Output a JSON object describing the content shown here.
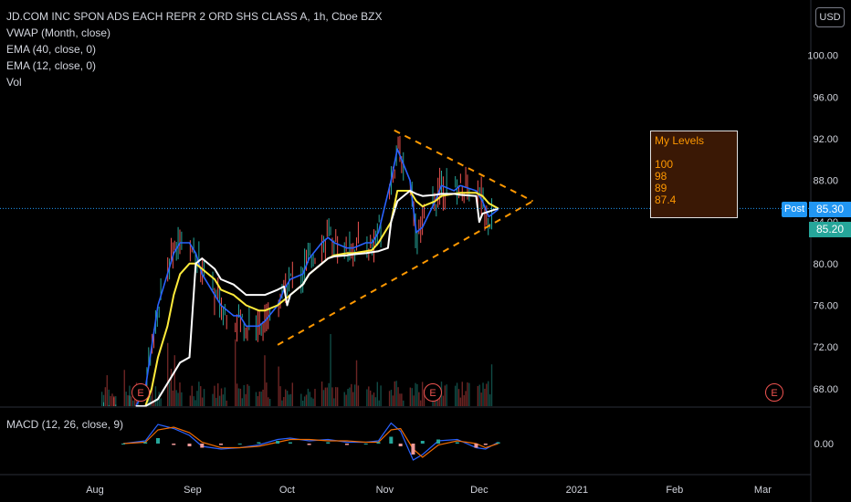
{
  "legend": {
    "title": "JD.COM INC SPON ADS EACH REPR 2 ORD SHS CLASS A, 1h, Cboe BZX",
    "vwap": "VWAP (Month, close)",
    "ema40": "EMA (40, close, 0)",
    "ema12": "EMA (12, close, 0)",
    "vol": "Vol"
  },
  "macd_label": "MACD (12, 26, close, 9)",
  "currency": "USD",
  "levels_box": {
    "title": "My Levels",
    "values": [
      "100",
      "98",
      "89",
      "87.4"
    ]
  },
  "price_tags": {
    "post_label": "Post",
    "post_price": "85.30",
    "last_price": "85.20"
  },
  "earnings_marker": "E",
  "colors": {
    "background": "#000000",
    "ema12": "#2962ff",
    "ema40": "#ffeb3b",
    "vwap": "#ffffff",
    "trendline": "#ff9800",
    "candle_up": "#26a69a",
    "candle_down": "#ef5350",
    "level_box_text": "#ff9800"
  },
  "chart_data": [
    {
      "type": "line",
      "title": "JD.COM INC SPON ADS EACH REPR 2 ORD SHS CLASS A, 1h, Cboe BZX",
      "x_tick_labels": [
        "Aug",
        "Sep",
        "Oct",
        "Nov",
        "Dec",
        "2021",
        "Feb",
        "Mar"
      ],
      "y_tick_labels": [
        "100.00",
        "96.00",
        "92.00",
        "88.00",
        "84.00",
        "80.00",
        "76.00",
        "72.00",
        "68.00"
      ],
      "ylim": [
        65,
        104
      ],
      "series": [
        {
          "name": "EMA (12, close, 0)",
          "x": [
            "Aug 14",
            "Aug 17",
            "Aug 19",
            "Aug 21",
            "Aug 24",
            "Aug 26",
            "Aug 28",
            "Aug 31",
            "Sep 2",
            "Sep 4",
            "Sep 8",
            "Sep 10",
            "Sep 14",
            "Sep 16",
            "Sep 18",
            "Sep 22",
            "Sep 24",
            "Sep 28",
            "Sep 30",
            "Oct 2",
            "Oct 6",
            "Oct 8",
            "Oct 12",
            "Oct 14",
            "Oct 16",
            "Oct 20",
            "Oct 22",
            "Oct 26",
            "Oct 28",
            "Oct 30",
            "Nov 3",
            "Nov 5",
            "Nov 9",
            "Nov 11",
            "Nov 13",
            "Nov 17",
            "Nov 19",
            "Nov 23",
            "Nov 25",
            "Nov 30",
            "Dec 2",
            "Dec 4",
            "Dec 7"
          ],
          "values": [
            65,
            68,
            72,
            76,
            79,
            81,
            82,
            82,
            81,
            79,
            77,
            76,
            75,
            75,
            74,
            74,
            74.5,
            76,
            77.5,
            78.5,
            79,
            80.5,
            82,
            82.5,
            82,
            81.5,
            81.5,
            82,
            82,
            83,
            88,
            91,
            88,
            83,
            83.5,
            86,
            87.5,
            87,
            87.5,
            87,
            86,
            84.5,
            85.2
          ]
        },
        {
          "name": "EMA (40, close, 0)",
          "x": [
            "Aug 14",
            "Aug 17",
            "Aug 19",
            "Aug 21",
            "Aug 24",
            "Aug 26",
            "Aug 28",
            "Aug 31",
            "Sep 2",
            "Sep 4",
            "Sep 8",
            "Sep 10",
            "Sep 14",
            "Sep 16",
            "Sep 18",
            "Sep 22",
            "Sep 24",
            "Sep 28",
            "Sep 30",
            "Oct 2",
            "Oct 6",
            "Oct 8",
            "Oct 12",
            "Oct 14",
            "Oct 16",
            "Oct 20",
            "Oct 22",
            "Oct 26",
            "Oct 28",
            "Oct 30",
            "Nov 3",
            "Nov 5",
            "Nov 9",
            "Nov 11",
            "Nov 13",
            "Nov 17",
            "Nov 19",
            "Nov 23",
            "Nov 25",
            "Nov 30",
            "Dec 2",
            "Dec 4",
            "Dec 7"
          ],
          "values": [
            65,
            66,
            68,
            71,
            74,
            77,
            79,
            80,
            80,
            79.5,
            78.5,
            77.5,
            77,
            76.5,
            76,
            75.5,
            75.5,
            76,
            76.5,
            77,
            78,
            79,
            80,
            80.5,
            80.8,
            81,
            81,
            81.2,
            81.3,
            82,
            84,
            87,
            87,
            86,
            85.5,
            86,
            86.5,
            86.7,
            86.8,
            86.8,
            86.5,
            85.8,
            85.3
          ]
        },
        {
          "name": "VWAP (Month, close)",
          "x": [
            "Aug 14",
            "Aug 17",
            "Aug 21",
            "Aug 24",
            "Aug 26",
            "Aug 28",
            "Aug 31",
            "Sep 2",
            "Sep 4",
            "Sep 8",
            "Sep 10",
            "Sep 14",
            "Sep 16",
            "Sep 18",
            "Sep 22",
            "Sep 24",
            "Sep 28",
            "Sep 30",
            "Oct 1",
            "Oct 2",
            "Oct 6",
            "Oct 8",
            "Oct 12",
            "Oct 14",
            "Oct 16",
            "Oct 20",
            "Oct 22",
            "Oct 26",
            "Oct 28",
            "Oct 30",
            "Nov 2",
            "Nov 3",
            "Nov 5",
            "Nov 9",
            "Nov 11",
            "Nov 13",
            "Nov 17",
            "Nov 19",
            "Nov 23",
            "Nov 25",
            "Nov 30",
            "Dec 1",
            "Dec 2",
            "Dec 4",
            "Dec 7"
          ],
          "values": [
            65,
            65.5,
            67,
            68.5,
            69.5,
            70.5,
            71,
            80,
            80.5,
            79.5,
            78.5,
            78,
            77.5,
            77,
            77,
            77,
            77.5,
            77.8,
            76,
            77,
            78,
            79,
            80,
            80.5,
            80.7,
            80.8,
            80.9,
            81,
            81.1,
            81.2,
            81.5,
            84,
            86,
            87,
            86.7,
            86.5,
            86.6,
            86.7,
            86.7,
            86.6,
            86.5,
            84,
            84.8,
            85,
            85.3
          ]
        }
      ],
      "trendlines": [
        {
          "name": "upper",
          "from": [
            "Nov 4",
            92.8
          ],
          "to": [
            "Dec 18",
            86
          ]
        },
        {
          "name": "lower",
          "from": [
            "Sep 28",
            72.2
          ],
          "to": [
            "Dec 18",
            86
          ]
        }
      ],
      "earnings_dates": [
        "Aug 17",
        "Nov 16",
        "Mar 4"
      ]
    },
    {
      "type": "line",
      "title": "MACD (12, 26, close, 9)",
      "y_tick_labels": [
        "0.00"
      ],
      "x": [
        "Aug 10",
        "Aug 17",
        "Aug 21",
        "Aug 26",
        "Aug 31",
        "Sep 4",
        "Sep 10",
        "Sep 16",
        "Sep 22",
        "Sep 28",
        "Oct 2",
        "Oct 8",
        "Oct 14",
        "Oct 20",
        "Oct 26",
        "Oct 30",
        "Nov 3",
        "Nov 6",
        "Nov 10",
        "Nov 13",
        "Nov 18",
        "Nov 24",
        "Nov 30",
        "Dec 3",
        "Dec 7"
      ],
      "series": [
        {
          "name": "MACD",
          "values": [
            0,
            0.2,
            1.4,
            1.1,
            0.6,
            -0.2,
            -0.4,
            -0.3,
            -0.1,
            0.3,
            0.4,
            0.2,
            0.3,
            0.1,
            0.1,
            0.2,
            1.5,
            0.9,
            -1.2,
            -0.8,
            0.2,
            0.3,
            -0.3,
            -0.4,
            0.1
          ]
        },
        {
          "name": "Signal",
          "values": [
            0,
            0.1,
            1.0,
            1.2,
            0.8,
            0.1,
            -0.3,
            -0.3,
            -0.2,
            0.1,
            0.3,
            0.3,
            0.2,
            0.2,
            0.1,
            0.1,
            1.0,
            1.1,
            -0.4,
            -1.0,
            -0.1,
            0.2,
            0,
            -0.3,
            0
          ]
        }
      ]
    }
  ]
}
